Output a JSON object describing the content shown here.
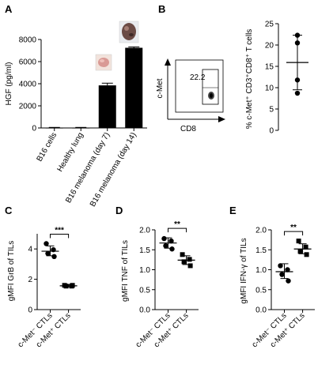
{
  "panels": {
    "A": {
      "label": "A"
    },
    "B": {
      "label": "B",
      "gate_value": "22.2",
      "x_label": "CD8",
      "y_label": "c-Met"
    },
    "C": {
      "label": "C"
    },
    "D": {
      "label": "D"
    },
    "E": {
      "label": "E"
    }
  },
  "chart_data": [
    {
      "panel": "A",
      "type": "bar",
      "categories": [
        "B16 cells",
        "Healthy lung",
        "B16 melanoma (day 7)",
        "B16 melanoma (day 14)"
      ],
      "values": [
        30,
        30,
        3850,
        7250
      ],
      "errors": [
        20,
        20,
        200,
        80
      ],
      "ylabel": "HGF (pg/ml)",
      "ylim": [
        0,
        8000
      ],
      "yticks": [
        0,
        2000,
        4000,
        6000,
        8000
      ],
      "bar_color": "#000000",
      "images": [
        "small tumor photo above day 7 bar",
        "large tumor photo above day 14 bar"
      ]
    },
    {
      "panel": "B",
      "type": "scatter",
      "ylabel": "% c-Met⁺ CD3⁺CD8⁺ T cells",
      "ylim": [
        0,
        25
      ],
      "yticks": [
        0,
        5,
        10,
        15,
        20,
        25
      ],
      "points": [
        22.3,
        20.5,
        11.8,
        8.7
      ],
      "mean": 15.9,
      "sd": [
        9.5,
        22.3
      ]
    },
    {
      "panel": "C",
      "type": "scatter",
      "ylabel": "gMFI GrB of TILs",
      "ylim": [
        0,
        5
      ],
      "yticks": [
        0,
        2,
        4
      ],
      "categories": [
        "c-Met⁻ CTLs",
        "c-Met⁺ CTLs"
      ],
      "groups": [
        {
          "name": "c-Met⁻ CTLs",
          "points": [
            4.35,
            3.95,
            3.7,
            3.5
          ],
          "mean": 3.85,
          "sd": [
            3.55,
            4.2
          ],
          "marker": "circle"
        },
        {
          "name": "c-Met⁺ CTLs",
          "points": [
            1.6,
            1.55,
            1.55,
            1.6
          ],
          "mean": 1.57,
          "sd": [
            1.5,
            1.65
          ],
          "marker": "square"
        }
      ],
      "significance": "***"
    },
    {
      "panel": "D",
      "type": "scatter",
      "ylabel": "gMFI TNF of TILs",
      "ylim": [
        0.0,
        2.0
      ],
      "yticks": [
        "0.0",
        "0.5",
        "1.0",
        "1.5",
        "2.0"
      ],
      "categories": [
        "c-Met⁻ CTLs",
        "c-Met⁺ CTLs"
      ],
      "groups": [
        {
          "name": "c-Met⁻ CTLs",
          "points": [
            1.78,
            1.72,
            1.6,
            1.52
          ],
          "mean": 1.67,
          "sd": [
            1.54,
            1.8
          ],
          "marker": "circle"
        },
        {
          "name": "c-Met⁺ CTLs",
          "points": [
            1.38,
            1.26,
            1.2,
            1.1
          ],
          "mean": 1.24,
          "sd": [
            1.13,
            1.35
          ],
          "marker": "square"
        }
      ],
      "significance": "**"
    },
    {
      "panel": "E",
      "type": "scatter",
      "ylabel": "gMFI IFN-γ of TILs",
      "ylim": [
        0.0,
        2.0
      ],
      "yticks": [
        "0.0",
        "0.5",
        "1.0",
        "1.5",
        "2.0"
      ],
      "categories": [
        "c-Met⁻ CTLs",
        "c-Met⁺ CTLs"
      ],
      "groups": [
        {
          "name": "c-Met⁻ CTLs",
          "points": [
            1.1,
            1.0,
            0.88,
            0.72
          ],
          "mean": 0.95,
          "sd": [
            0.78,
            1.15
          ],
          "marker": "circle"
        },
        {
          "name": "c-Met⁺ CTLs",
          "points": [
            1.72,
            1.57,
            1.46,
            1.38
          ],
          "mean": 1.52,
          "sd": [
            1.4,
            1.65
          ],
          "marker": "square"
        }
      ],
      "significance": "**"
    }
  ]
}
